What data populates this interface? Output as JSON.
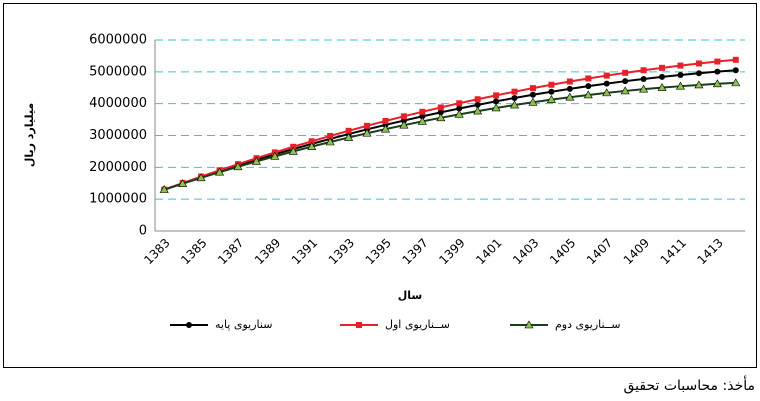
{
  "chart_data": {
    "type": "line",
    "x_label": "سال",
    "y_label": "میلیارد ریال",
    "source": "مأخذ: محاسبات تحقیق",
    "categories": [
      "1383",
      null,
      "1385",
      null,
      "1387",
      null,
      "1389",
      null,
      "1391",
      null,
      "1393",
      null,
      "1395",
      null,
      "1397",
      null,
      "1399",
      null,
      "1401",
      null,
      "1403",
      null,
      "1405",
      null,
      "1407",
      null,
      "1409",
      null,
      "1411",
      null,
      "1413",
      null
    ],
    "ylim": [
      0,
      6000000
    ],
    "yticks": [
      0,
      1000000,
      2000000,
      3000000,
      4000000,
      5000000,
      6000000
    ],
    "grid": true,
    "series": [
      {
        "name": "سناریوی پایه",
        "color": "#000000",
        "marker": "circle",
        "values": [
          1300000,
          1497450,
          1689800,
          1877050,
          2059200,
          2236250,
          2408200,
          2575050,
          2736800,
          2893450,
          3045000,
          3191450,
          3332800,
          3469050,
          3600200,
          3726250,
          3847200,
          3963050,
          4073800,
          4179450,
          4280000,
          4375450,
          4465800,
          4550450,
          4631200,
          4706250,
          4776200,
          4841050,
          4900800,
          4955450,
          5005000,
          5049450
        ]
      },
      {
        "name": "ســناریوی اول",
        "color": "#e8202a",
        "marker": "square",
        "values": [
          1300000,
          1507470,
          1709880,
          1907230,
          2099520,
          2286750,
          2468920,
          2646030,
          2818080,
          2985070,
          3147000,
          3303870,
          3455680,
          3602430,
          3744120,
          3880750,
          4012320,
          4138830,
          4260280,
          4376670,
          4488000,
          4594270,
          4695480,
          4791630,
          4882720,
          4968750,
          5049720,
          5125630,
          5196480,
          5262270,
          5323000,
          5378670
        ]
      },
      {
        "name": "ســناریوی دوم",
        "color": "#2e7d32",
        "marker": "triangle",
        "values": [
          1300000,
          1487360,
          1669440,
          1846240,
          2017760,
          2184000,
          2344960,
          2500640,
          2651040,
          2796160,
          2936000,
          3070560,
          3199840,
          3323840,
          3442560,
          3556000,
          3664160,
          3767040,
          3864640,
          3956960,
          4044000,
          4125760,
          4202240,
          4273440,
          4339360,
          4400000,
          4455360,
          4505040,
          4549040,
          4587360,
          4624000,
          4652960
        ]
      }
    ]
  }
}
